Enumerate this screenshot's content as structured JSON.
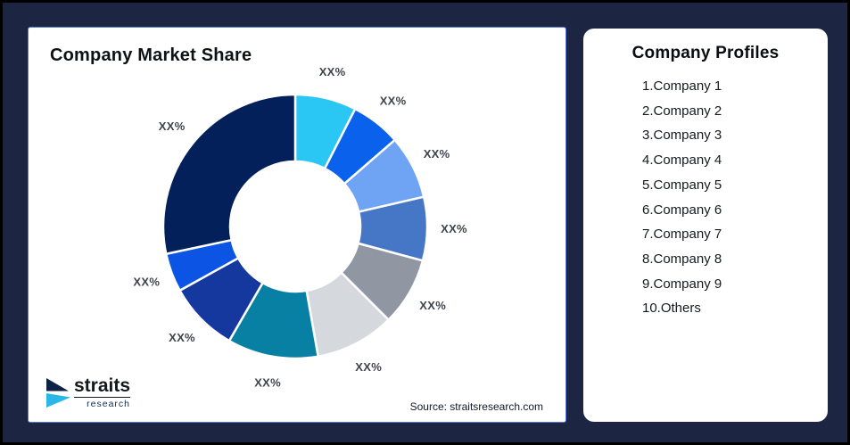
{
  "theme": {
    "background": "#1C2541",
    "card_border": "#5B78DD",
    "logo_navy": "#0E2148",
    "logo_cyan": "#29B6E8",
    "label_color": "#3F444C"
  },
  "market_share_card": {
    "title": "Company Market Share",
    "source": "Source: straitsresearch.com"
  },
  "logo": {
    "brand": "straits",
    "brand_sub": "research"
  },
  "profiles_card": {
    "title": "Company Profiles",
    "items": [
      "1.Company 1",
      "2.Company 2",
      "3.Company 3",
      "4.Company 4",
      "5.Company 5",
      "6.Company 6",
      "7.Company 7",
      "8.Company 8",
      "9.Company 9",
      "10.Others"
    ]
  },
  "chart_data": {
    "type": "pie",
    "subtype": "donut",
    "title": "Company Market Share",
    "start_angle_deg": 0,
    "direction": "clockwise",
    "inner_radius_ratio": 0.495,
    "legend": "none",
    "data_labels_note": "all slice labels are XX% placeholders",
    "segments": [
      {
        "index": 1,
        "label": "XX%",
        "color": "#2AC6F4",
        "sweep_deg": 27,
        "approx_share_pct": 7.5
      },
      {
        "index": 2,
        "label": "XX%",
        "color": "#0A62EC",
        "sweep_deg": 22,
        "approx_share_pct": 6.1
      },
      {
        "index": 3,
        "label": "XX%",
        "color": "#6FA3F4",
        "sweep_deg": 28,
        "approx_share_pct": 7.8
      },
      {
        "index": 4,
        "label": "XX%",
        "color": "#4677C6",
        "sweep_deg": 28,
        "approx_share_pct": 7.8
      },
      {
        "index": 5,
        "label": "XX%",
        "color": "#9097A3",
        "sweep_deg": 30,
        "approx_share_pct": 8.3
      },
      {
        "index": 6,
        "label": "XX%",
        "color": "#D5D8DC",
        "sweep_deg": 35,
        "approx_share_pct": 9.7
      },
      {
        "index": 7,
        "label": "XX%",
        "color": "#0880A4",
        "sweep_deg": 40,
        "approx_share_pct": 11.1
      },
      {
        "index": 8,
        "label": "XX%",
        "color": "#14389E",
        "sweep_deg": 31,
        "approx_share_pct": 8.6
      },
      {
        "index": 9,
        "label": "XX%",
        "color": "#0C55E4",
        "sweep_deg": 17,
        "approx_share_pct": 4.7
      },
      {
        "index": 10,
        "label": "XX%",
        "color": "#04205A",
        "sweep_deg": 102,
        "approx_share_pct": 28.4
      }
    ]
  }
}
